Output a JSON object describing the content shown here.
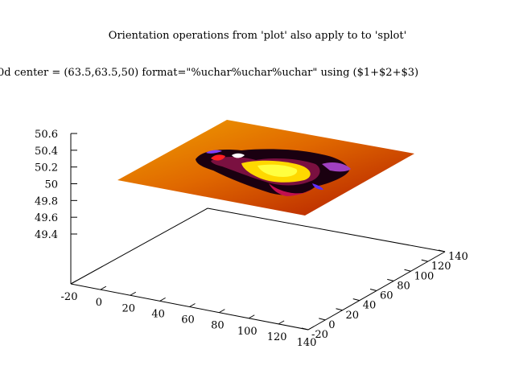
{
  "chart_data": {
    "type": "heatmap",
    "title": "Orientation operations from 'plot' also apply to to 'splot'",
    "subtitle": "0d center = (63.5,63.5,50) format=\"%uchar%uchar%uchar\" using ($1+$2+$3)",
    "x_axis": {
      "ticks": [
        "-20",
        "0",
        "20",
        "40",
        "60",
        "80",
        "100",
        "120",
        "140"
      ],
      "range": [
        -20,
        140
      ]
    },
    "y_axis": {
      "ticks": [
        "-20",
        "0",
        "20",
        "40",
        "60",
        "80",
        "100",
        "120",
        "140"
      ],
      "range": [
        -20,
        140
      ]
    },
    "z_axis": {
      "ticks": [
        "49.4",
        "49.6",
        "49.8",
        "50",
        "50.2",
        "50.4",
        "50.6"
      ],
      "range": [
        49.4,
        50.6
      ]
    },
    "surface": {
      "z_level": 50,
      "x_range": [
        0,
        127
      ],
      "y_range": [
        0,
        127
      ],
      "palette": [
        "#000000",
        "#7a00a0",
        "#c00010",
        "#ff6a00",
        "#ffd700",
        "#ffff40"
      ],
      "image_description_colors": [
        "#d43a00",
        "#e87800",
        "#f0a000",
        "#b02000"
      ]
    },
    "grid": false,
    "legend": "none"
  }
}
